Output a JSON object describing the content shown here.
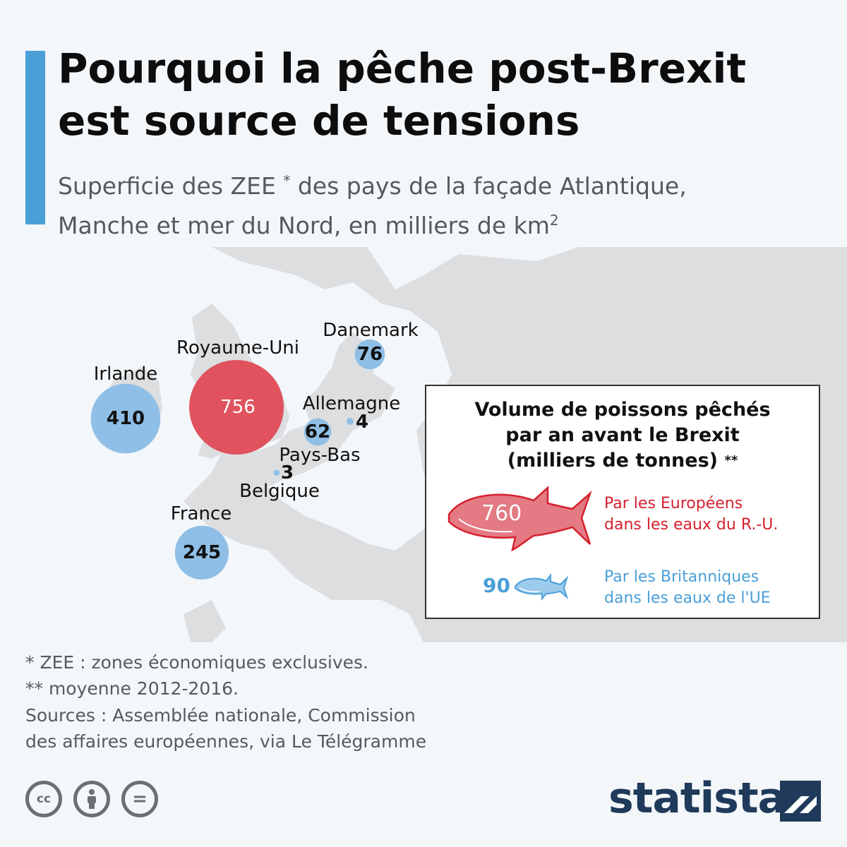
{
  "title_line1": "Pourquoi la pêche post-Brexit",
  "title_line2": "est source de tensions",
  "subtitle_part1": "Superficie des ZEE",
  "subtitle_star": "*",
  "subtitle_part2": "des pays de la façade Atlantique,",
  "subtitle_line2": "Manche et mer du Nord, en milliers de km",
  "subtitle_sup": "2",
  "chart_data": [
    {
      "type": "bubble-map",
      "categories": [
        "Irlande",
        "Royaume-Uni",
        "Danemark",
        "Allemagne",
        "Pays-Bas",
        "Belgique",
        "France"
      ],
      "values": [
        410,
        756,
        76,
        62,
        4,
        3,
        245
      ],
      "colors": [
        "#8fbfe6",
        "#e0525e",
        "#8fbfe6",
        "#8fbfe6",
        "#8fbfe6",
        "#8fbfe6",
        "#8fbfe6"
      ]
    },
    {
      "type": "pictogram",
      "title_line1": "Volume de poissons pêchés",
      "title_line2": "par an avant le Brexit",
      "title_line3": "(milliers de tonnes)",
      "title_stars": "**",
      "categories": [
        "Par les Européens dans les eaux du R.-U.",
        "Par les Britanniques dans les eaux de l'UE"
      ],
      "values": [
        760,
        90
      ],
      "label_eu_line1": "Par les Européens",
      "label_eu_line2": "dans les eaux du R.-U.",
      "label_uk_line1": "Par les Britanniques",
      "label_uk_line2": "dans les eaux de l'UE",
      "colors": [
        "#d6202e",
        "#4a9fd8"
      ]
    }
  ],
  "notes": {
    "note1": "*   ZEE : zones économiques exclusives.",
    "note2": "** moyenne 2012-2016.",
    "sources_line1": "Sources : Assemblée nationale, Commission",
    "sources_line2": "des affaires européennes, via Le Télégramme"
  },
  "footer": {
    "cc_label": "cc",
    "nd_label": "=",
    "brand": "statista"
  },
  "colors": {
    "accent": "#4a9fd8",
    "uk": "#e0525e",
    "other": "#8fbfe6",
    "brand": "#1f3a5a"
  }
}
